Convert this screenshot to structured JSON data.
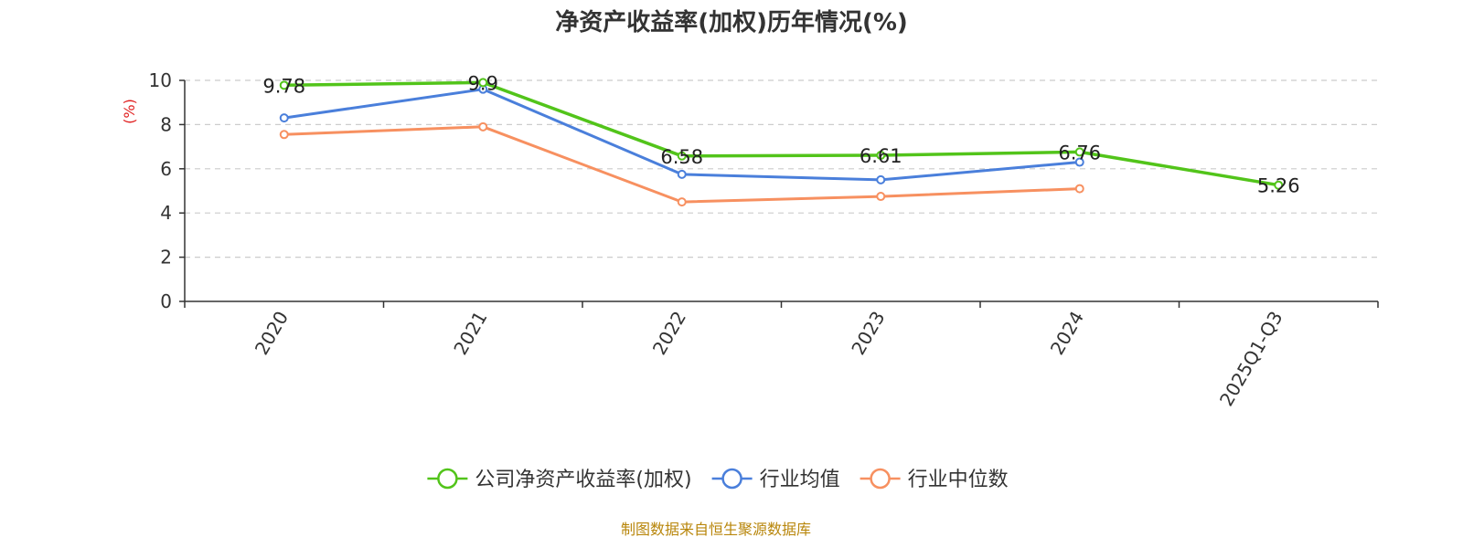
{
  "chart_data": {
    "type": "line",
    "title": "净资产收益率(加权)历年情况(%)",
    "ylabel": "(%)",
    "ylim": [
      0,
      10
    ],
    "yticks": [
      0,
      2,
      4,
      6,
      8,
      10
    ],
    "grid": true,
    "legend_position": "bottom",
    "categories": [
      "2020",
      "2021",
      "2022",
      "2023",
      "2024",
      "2025Q1-Q3"
    ],
    "series": [
      {
        "name": "公司净资产收益率(加权)",
        "color": "#52c41a",
        "values": [
          9.78,
          9.9,
          6.58,
          6.61,
          6.76,
          5.26
        ],
        "labels": [
          "9.78",
          "9.9",
          "6.58",
          "6.61",
          "6.76",
          "5.26"
        ]
      },
      {
        "name": "行业均值",
        "color": "#4a7fdb",
        "values": [
          8.3,
          9.6,
          5.75,
          5.5,
          6.3,
          null
        ]
      },
      {
        "name": "行业中位数",
        "color": "#f79060",
        "values": [
          7.55,
          7.9,
          4.5,
          4.75,
          5.1,
          null
        ]
      }
    ],
    "source": "制图数据来自恒生聚源数据库"
  },
  "colors": {
    "axis": "#333333",
    "grid": "#cccccc",
    "ylabel": "#e02020",
    "source": "#b8860b"
  }
}
